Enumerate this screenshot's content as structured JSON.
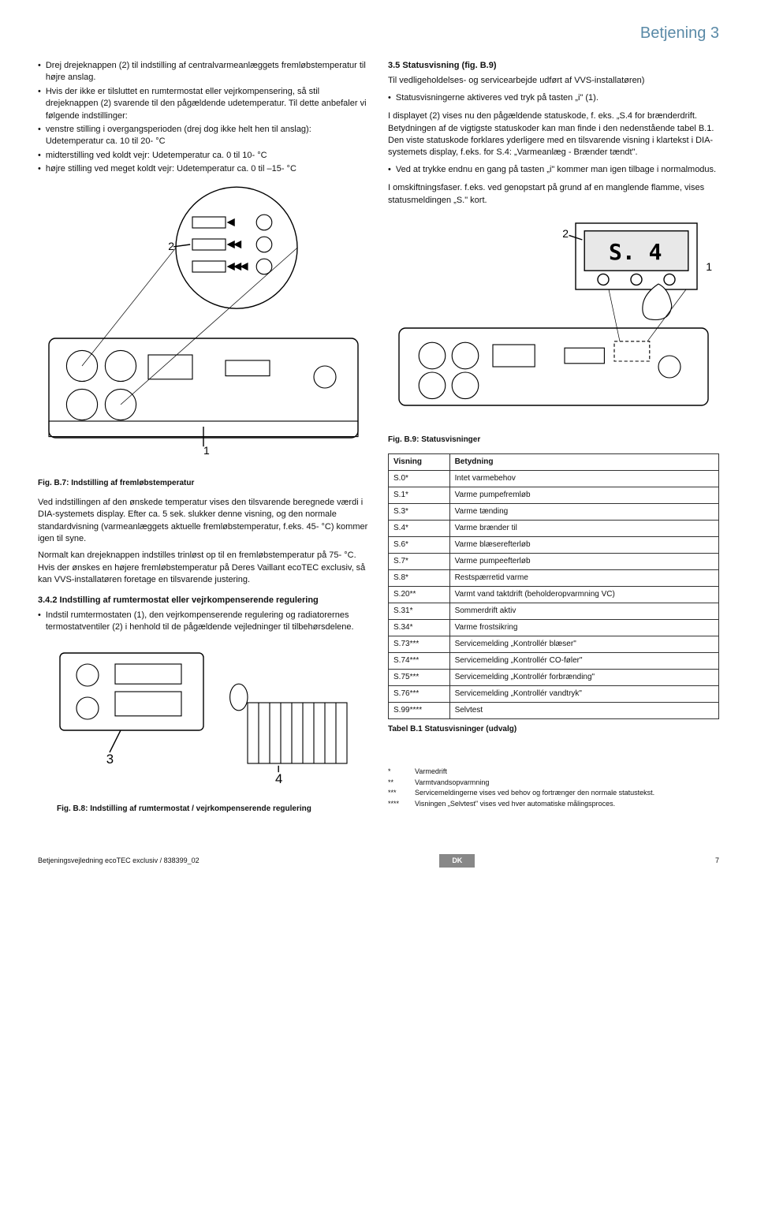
{
  "header": {
    "title": "Betjening 3"
  },
  "left": {
    "p1": "Drej drejeknappen (2) til indstilling af centralvarmeanlæggets fremløbstemperatur til højre anslag.",
    "p2": "Hvis der ikke er tilsluttet en rumtermostat eller vejrkompensering, så stil drejeknappen (2) svarende til den pågældende udetemperatur. Til dette anbefaler vi følgende indstillinger:",
    "b1": "venstre stilling i overgangsperioden (drej dog ikke helt hen til anslag): Udetemperatur ca. 10 til 20- °C",
    "b2": "midterstilling ved koldt vejr: Udetemperatur ca. 0 til 10- °C",
    "b3": "højre stilling ved meget koldt vejr: Udetemperatur ca. 0 til –15- °C",
    "fig7": {
      "caption": "Fig. B.7: Indstilling af fremløbstemperatur",
      "label2": "2",
      "label1": "1"
    },
    "p3": "Ved indstillingen af den ønskede temperatur vises den tilsvarende beregnede værdi i DIA-systemets display. Efter ca. 5 sek. slukker denne visning, og den normale standardvisning (varmeanlæggets aktuelle fremløbstemperatur, f.eks. 45- °C) kommer igen til syne.",
    "p4": "Normalt kan drejeknappen indstilles trinløst op til en fremløbstemperatur på 75- °C. Hvis der ønskes en højere fremløbstemperatur på Deres Vaillant ecoTEC exclusiv, så kan VVS-installatøren foretage en tilsvarende justering.",
    "s342_head": "3.4.2  Indstilling af rumtermostat eller vejrkompenserende regulering",
    "s342_b1": "Indstil rumtermostaten (1), den vejrkompenserende regulering og radiatorernes termostatventiler (2) i henhold til de pågældende vejledninger til tilbehørsdelene.",
    "fig8": {
      "caption": "Fig. B.8: Indstilling af rumtermostat / vejrkompenserende regulering",
      "label3": "3",
      "label4": "4"
    }
  },
  "right": {
    "s35_head": "3.5  Statusvisning (fig. B.9)",
    "s35_p1": "Til vedligeholdelses- og servicearbejde udført af VVS-installatøren)",
    "s35_b1": "Statusvisningerne aktiveres ved tryk på tasten „i\" (1).",
    "s35_p2": "I displayet (2) vises nu den pågældende statuskode, f. eks. „S.4 for brænderdrift. Betydningen af de vigtigste statuskoder kan man finde i den nedenstående tabel B.1. Den viste statuskode forklares yderligere med en tilsvarende visning i klartekst i DIA-systemets display, f.eks. for S.4: „Varmeanlæg - Brænder tændt\".",
    "s35_b2": "Ved at trykke endnu en gang på tasten „i\" kommer man igen tilbage i normalmodus.",
    "s35_p3": "I omskiftningsfaser. f.eks. ved genopstart på grund af en manglende flamme, vises statusmeldingen „S.\" kort.",
    "fig9": {
      "caption": "Fig. B.9: Statusvisninger",
      "label2": "2",
      "label1": "1",
      "display": "S. 4"
    },
    "table": {
      "col1": "Visning",
      "col2": "Betydning",
      "rows": [
        [
          "S.0*",
          "Intet varmebehov"
        ],
        [
          "S.1*",
          "Varme pumpefremløb"
        ],
        [
          "S.3*",
          "Varme tænding"
        ],
        [
          "S.4*",
          "Varme brænder til"
        ],
        [
          "S.6*",
          "Varme blæserefterløb"
        ],
        [
          "S.7*",
          "Varme pumpeefterløb"
        ],
        [
          "S.8*",
          "Restspærretid varme"
        ],
        [
          "S.20**",
          "Varmt vand taktdrift (beholderopvarmning VC)"
        ],
        [
          "S.31*",
          "Sommerdrift aktiv"
        ],
        [
          "S.34*",
          "Varme frostsikring"
        ],
        [
          "S.73***",
          "Servicemelding „Kontrollér blæser\""
        ],
        [
          "S.74***",
          "Servicemelding „Kontrollér CO-føler\""
        ],
        [
          "S.75***",
          "Servicemelding „Kontrollér forbrænding\""
        ],
        [
          "S.76***",
          "Servicemelding „Kontrollér vandtryk\""
        ],
        [
          "S.99****",
          "Selvtest"
        ]
      ],
      "caption": "Tabel B.1 Statusvisninger (udvalg)"
    },
    "legend": [
      [
        "*",
        "Varmedrift"
      ],
      [
        "**",
        "Varmtvandsopvarmning"
      ],
      [
        "***",
        "Servicemeldingerne vises ved behov og fortrænger den normale statustekst."
      ],
      [
        "****",
        "Visningen „Selvtest\" vises ved hver automatiske målingsproces."
      ]
    ]
  },
  "footer": {
    "doc": "Betjeningsvejledning ecoTEC exclusiv / 838399_02",
    "badge": "DK",
    "page": "7"
  },
  "colors": {
    "header": "#5a8aa7",
    "badge_bg": "#888888"
  }
}
